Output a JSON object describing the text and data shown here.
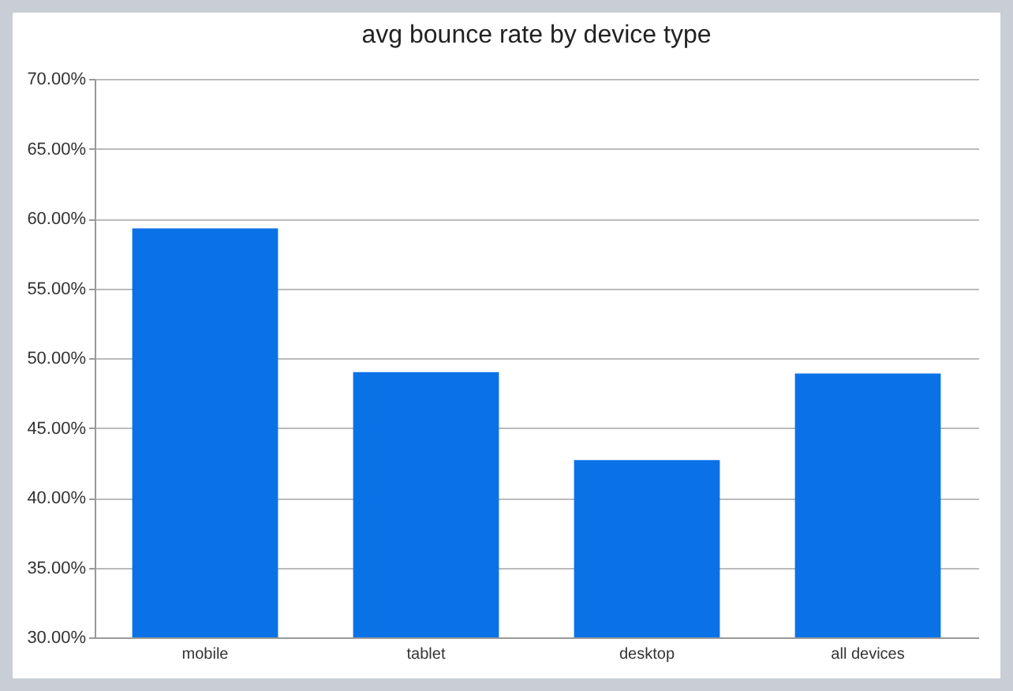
{
  "chart_data": {
    "type": "bar",
    "title": "avg bounce rate by device type",
    "categories": [
      "mobile",
      "tablet",
      "desktop",
      "all devices"
    ],
    "values": [
      59.3,
      49.0,
      42.7,
      48.9
    ],
    "color": "#0a72e6",
    "ylim": [
      30,
      70
    ],
    "yticks": [
      {
        "value": 30,
        "label": "30.00%"
      },
      {
        "value": 35,
        "label": "35.00%"
      },
      {
        "value": 40,
        "label": "40.00%"
      },
      {
        "value": 45,
        "label": "45.00%"
      },
      {
        "value": 50,
        "label": "50.00%"
      },
      {
        "value": 55,
        "label": "55.00%"
      },
      {
        "value": 60,
        "label": "60.00%"
      },
      {
        "value": 65,
        "label": "65.00%"
      },
      {
        "value": 70,
        "label": "70.00%"
      }
    ],
    "grid": "y"
  }
}
